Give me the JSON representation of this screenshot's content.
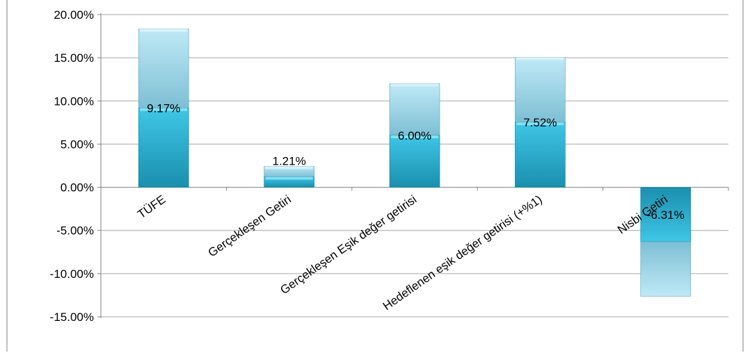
{
  "chart_data": {
    "type": "bar",
    "categories": [
      "TÜFE",
      "Gerçekleşen Getiri",
      "Gerçekleşen Eşik değer getirisi",
      "Hedeflenen eşik değer getirisi (+%1)",
      "Nisbi Getiri"
    ],
    "values": [
      9.17,
      1.21,
      6.0,
      7.52,
      -6.31
    ],
    "data_labels": [
      "9.17%",
      "1.21%",
      "6.00%",
      "7.52%",
      "-6.31%"
    ],
    "y_ticks": [
      "20.00%",
      "15.00%",
      "10.00%",
      "5.00%",
      "0.00%",
      "-5.00%",
      "-10.00%",
      "-15.00%"
    ],
    "ylim": [
      -15,
      20
    ],
    "grid": true,
    "legend": "none",
    "title": "",
    "xlabel": "",
    "ylabel": "",
    "colors": {
      "bar_dark_top": "#3fc6e6",
      "bar_dark_bottom": "#1a8fae",
      "bar_light_top": "#bfe9f6",
      "bar_light_bottom": "#7dbfd4",
      "grid": "#a6a6a6",
      "axis": "#808080",
      "text": "#000000"
    }
  }
}
